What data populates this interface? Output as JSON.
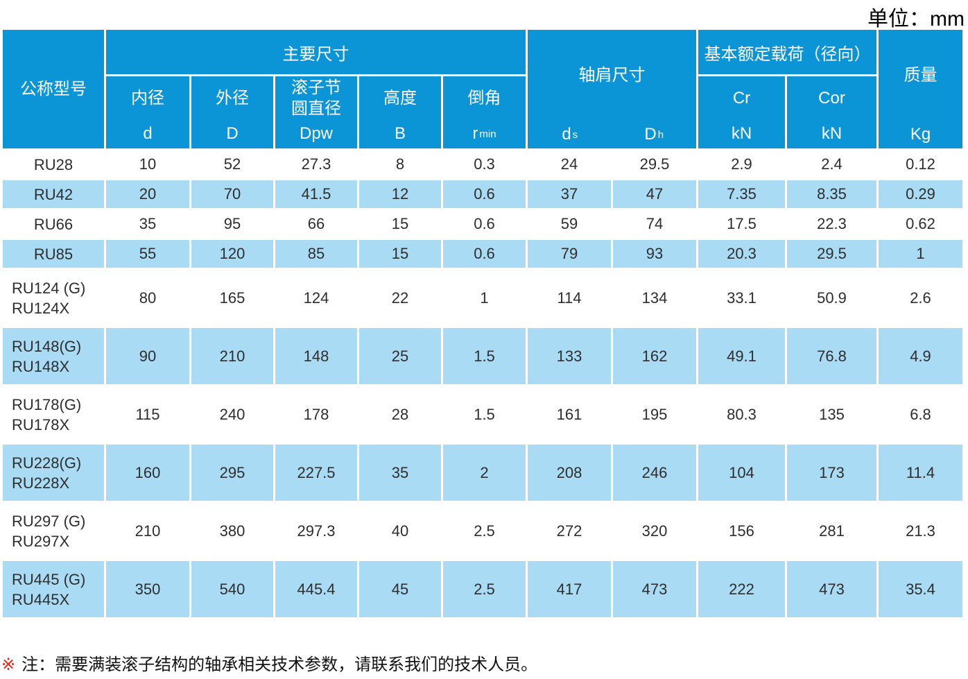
{
  "unit_label": "单位：mm",
  "colors": {
    "header_blue": "#0c95d6",
    "row_light_blue": "#a9dcf4",
    "body_text": "#2d2d2d",
    "note_mark_red": "#e2261b"
  },
  "table": {
    "header": {
      "model": "公称型号",
      "main_dims": "主要尺寸",
      "shoulder_dims": "轴肩尺寸",
      "rated_load": "基本额定载荷（径向）",
      "mass": "质量",
      "mass_unit": "Kg",
      "dim_columns": [
        {
          "label": "内径",
          "sym": "d"
        },
        {
          "label": "外径",
          "sym": "D"
        },
        {
          "label": "滚子节",
          "label2": "圆直径",
          "sym": "Dpw"
        },
        {
          "label": "高度",
          "sym": "B"
        },
        {
          "label": "倒角",
          "sym": "r",
          "sub": "min"
        }
      ],
      "shoulder_columns": [
        {
          "sym": "d",
          "sub": "s"
        },
        {
          "sym": "D",
          "sub": "h"
        }
      ],
      "load_columns": [
        {
          "label": "Cr",
          "unit": "kN"
        },
        {
          "label": "Cor",
          "unit": "kN"
        }
      ]
    },
    "rows": [
      {
        "model": [
          "RU28"
        ],
        "values": [
          "10",
          "52",
          "27.3",
          "8",
          "0.3",
          "24",
          "29.5",
          "2.9",
          "2.4",
          "0.12"
        ]
      },
      {
        "model": [
          "RU42"
        ],
        "values": [
          "20",
          "70",
          "41.5",
          "12",
          "0.6",
          "37",
          "47",
          "7.35",
          "8.35",
          "0.29"
        ]
      },
      {
        "model": [
          "RU66"
        ],
        "values": [
          "35",
          "95",
          "66",
          "15",
          "0.6",
          "59",
          "74",
          "17.5",
          "22.3",
          "0.62"
        ]
      },
      {
        "model": [
          "RU85"
        ],
        "values": [
          "55",
          "120",
          "85",
          "15",
          "0.6",
          "79",
          "93",
          "20.3",
          "29.5",
          "1"
        ]
      },
      {
        "model": [
          "RU124 (G)",
          "RU124X"
        ],
        "values": [
          "80",
          "165",
          "124",
          "22",
          "1",
          "114",
          "134",
          "33.1",
          "50.9",
          "2.6"
        ]
      },
      {
        "model": [
          "RU148(G)",
          "RU148X"
        ],
        "values": [
          "90",
          "210",
          "148",
          "25",
          "1.5",
          "133",
          "162",
          "49.1",
          "76.8",
          "4.9"
        ]
      },
      {
        "model": [
          "RU178(G)",
          "RU178X"
        ],
        "values": [
          "115",
          "240",
          "178",
          "28",
          "1.5",
          "161",
          "195",
          "80.3",
          "135",
          "6.8"
        ]
      },
      {
        "model": [
          "RU228(G)",
          "RU228X"
        ],
        "values": [
          "160",
          "295",
          "227.5",
          "35",
          "2",
          "208",
          "246",
          "104",
          "173",
          "11.4"
        ]
      },
      {
        "model": [
          "RU297 (G)",
          "RU297X"
        ],
        "values": [
          "210",
          "380",
          "297.3",
          "40",
          "2.5",
          "272",
          "320",
          "156",
          "281",
          "21.3"
        ]
      },
      {
        "model": [
          "RU445 (G)",
          "RU445X"
        ],
        "values": [
          "350",
          "540",
          "445.4",
          "45",
          "2.5",
          "417",
          "473",
          "222",
          "473",
          "35.4"
        ]
      }
    ]
  },
  "note": {
    "mark": "※",
    "text": "注：需要满装滚子结构的轴承相关技术参数，请联系我们的技术人员。"
  }
}
